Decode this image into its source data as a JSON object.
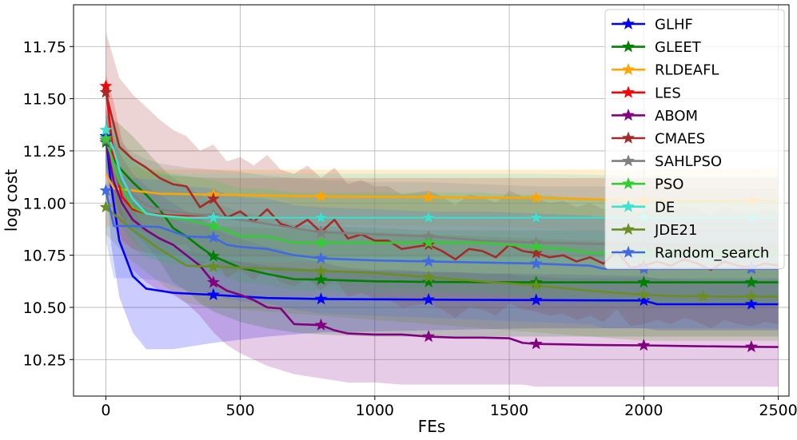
{
  "chart_data": {
    "type": "line",
    "xlabel": "FEs",
    "ylabel": "log cost",
    "xlim": [
      -120,
      2540
    ],
    "ylim": [
      10.075,
      11.95
    ],
    "xticks": [
      0,
      500,
      1000,
      1500,
      2000,
      2500
    ],
    "yticks": [
      10.25,
      10.5,
      10.75,
      11.0,
      11.25,
      11.5,
      11.75
    ],
    "xtick_labels": [
      "0",
      "500",
      "1000",
      "1500",
      "2000",
      "2500"
    ],
    "ytick_labels": [
      "10.25",
      "10.50",
      "10.75",
      "11.00",
      "11.25",
      "11.50",
      "11.75"
    ],
    "grid": true,
    "legend_position": "top-right",
    "series": [
      {
        "name": "GLHF",
        "color": "#0000ff",
        "x": [
          0,
          20,
          50,
          100,
          150,
          250,
          400,
          600,
          800,
          1200,
          1600,
          2000,
          2050,
          2400,
          2500
        ],
        "y": [
          11.32,
          11.08,
          10.82,
          10.65,
          10.59,
          10.57,
          10.56,
          10.545,
          10.54,
          10.537,
          10.535,
          10.533,
          10.515,
          10.515,
          10.515
        ],
        "markers_x": [
          0,
          400,
          800,
          1200,
          1600,
          2000,
          2400
        ],
        "band_upper": [
          11.46,
          11.35,
          11.18,
          10.98,
          10.86,
          10.79,
          10.74,
          10.7,
          10.68,
          10.67,
          10.66,
          10.65,
          10.64,
          10.64,
          10.64
        ],
        "band_lower": [
          11.18,
          10.8,
          10.55,
          10.38,
          10.3,
          10.3,
          10.33,
          10.36,
          10.38,
          10.39,
          10.4,
          10.4,
          10.39,
          10.39,
          10.39
        ]
      },
      {
        "name": "GLEET",
        "color": "#008000",
        "x": [
          0,
          50,
          100,
          150,
          200,
          250,
          300,
          350,
          400,
          500,
          600,
          700,
          800,
          1000,
          1200,
          1600,
          2000,
          2400,
          2500
        ],
        "y": [
          11.29,
          11.17,
          11.1,
          11.04,
          10.97,
          10.88,
          10.84,
          10.79,
          10.745,
          10.69,
          10.66,
          10.635,
          10.633,
          10.625,
          10.622,
          10.62,
          10.62,
          10.62,
          10.62
        ],
        "markers_x": [
          0,
          400,
          800,
          1200,
          1600,
          2000,
          2400
        ],
        "band_upper": [
          11.42,
          11.38,
          11.32,
          11.25,
          11.18,
          11.12,
          11.08,
          11.04,
          11.0,
          10.96,
          10.93,
          10.9,
          10.89,
          10.88,
          10.87,
          10.87,
          10.87,
          10.87,
          10.87
        ],
        "band_lower": [
          11.15,
          10.95,
          10.86,
          10.8,
          10.72,
          10.62,
          10.58,
          10.52,
          10.48,
          10.43,
          10.4,
          10.38,
          10.37,
          10.36,
          10.36,
          10.36,
          10.36,
          10.36,
          10.36
        ]
      },
      {
        "name": "RLDEAFL",
        "color": "#ffa500",
        "x": [
          0,
          30,
          100,
          200,
          400,
          800,
          1200,
          1600,
          1900,
          2000,
          2500
        ],
        "y": [
          11.14,
          11.07,
          11.06,
          11.045,
          11.04,
          11.032,
          11.028,
          11.025,
          11.015,
          11.01,
          11.01
        ],
        "markers_x": [
          400,
          800,
          1200,
          1600,
          2000,
          2400
        ],
        "band_upper": [
          11.2,
          11.18,
          11.17,
          11.16,
          11.16,
          11.16,
          11.16,
          11.16,
          11.16,
          11.16,
          11.17
        ],
        "band_lower": [
          10.88,
          10.9,
          10.9,
          10.91,
          10.92,
          10.9,
          10.89,
          10.88,
          10.86,
          10.86,
          10.86
        ]
      },
      {
        "name": "LES",
        "color": "#ff0000",
        "x": [
          0,
          30,
          60,
          100,
          150,
          250,
          400,
          800,
          1200,
          1600,
          2000,
          2500
        ],
        "y": [
          11.56,
          11.2,
          11.03,
          10.97,
          10.95,
          10.94,
          10.93,
          10.93,
          10.93,
          10.93,
          10.93,
          10.93
        ],
        "markers_x": [
          0,
          400,
          800,
          1200,
          1600,
          2000,
          2400
        ],
        "band_upper": [
          11.62,
          11.48,
          11.3,
          11.2,
          11.15,
          11.13,
          11.12,
          11.12,
          11.12,
          11.12,
          11.12,
          11.12
        ],
        "band_lower": [
          11.5,
          10.95,
          10.82,
          10.78,
          10.76,
          10.75,
          10.74,
          10.74,
          10.74,
          10.74,
          10.74,
          10.74
        ]
      },
      {
        "name": "ABOM",
        "color": "#800080",
        "x": [
          0,
          30,
          60,
          100,
          150,
          200,
          250,
          300,
          350,
          400,
          450,
          500,
          550,
          600,
          650,
          700,
          800,
          850,
          900,
          1000,
          1100,
          1200,
          1300,
          1400,
          1500,
          1550,
          1600,
          1700,
          1800,
          2000,
          2200,
          2400,
          2500
        ],
        "y": [
          11.3,
          11.1,
          11.0,
          10.92,
          10.87,
          10.83,
          10.8,
          10.75,
          10.7,
          10.62,
          10.58,
          10.56,
          10.535,
          10.5,
          10.495,
          10.42,
          10.415,
          10.39,
          10.375,
          10.37,
          10.37,
          10.36,
          10.355,
          10.355,
          10.352,
          10.33,
          10.325,
          10.323,
          10.32,
          10.318,
          10.314,
          10.311,
          10.31
        ],
        "markers_x": [
          0,
          400,
          800,
          1200,
          1600,
          2000,
          2400
        ],
        "band_upper": [
          11.4,
          11.3,
          11.22,
          11.14,
          11.08,
          11.04,
          11.0,
          10.96,
          10.93,
          10.88,
          10.85,
          10.83,
          10.81,
          10.79,
          10.78,
          10.74,
          10.72,
          10.7,
          10.69,
          10.68,
          10.68,
          10.67,
          10.67,
          10.66,
          10.66,
          10.65,
          10.65,
          10.64,
          10.64,
          10.64,
          10.63,
          10.63,
          10.63
        ],
        "band_lower": [
          11.2,
          10.9,
          10.78,
          10.68,
          10.62,
          10.58,
          10.56,
          10.52,
          10.46,
          10.38,
          10.32,
          10.28,
          10.25,
          10.22,
          10.2,
          10.18,
          10.16,
          10.15,
          10.14,
          10.14,
          10.13,
          10.13,
          10.13,
          10.13,
          10.13,
          10.13,
          10.12,
          10.12,
          10.12,
          10.12,
          10.12,
          10.12,
          10.12
        ]
      },
      {
        "name": "CMAES",
        "color": "#a52a2a",
        "x": [
          0,
          50,
          100,
          150,
          200,
          250,
          300,
          350,
          400,
          450,
          500,
          550,
          600,
          650,
          700,
          750,
          800,
          850,
          900,
          950,
          1000,
          1050,
          1100,
          1150,
          1200,
          1250,
          1300,
          1350,
          1400,
          1450,
          1500,
          1550,
          1600,
          1650,
          1700,
          1750,
          1800,
          1850,
          1900,
          1950,
          2000,
          2050,
          2100,
          2150,
          2200,
          2250,
          2300,
          2350,
          2400,
          2450,
          2500
        ],
        "y": [
          11.53,
          11.27,
          11.21,
          11.17,
          11.12,
          11.09,
          11.08,
          10.98,
          11.02,
          10.93,
          10.96,
          10.91,
          10.97,
          10.9,
          10.88,
          10.92,
          10.86,
          10.92,
          10.83,
          10.85,
          10.82,
          10.82,
          10.78,
          10.79,
          10.8,
          10.77,
          10.73,
          10.78,
          10.77,
          10.74,
          10.8,
          10.77,
          10.76,
          10.74,
          10.75,
          10.72,
          10.74,
          10.71,
          10.77,
          10.69,
          10.7,
          10.72,
          10.7,
          10.73,
          10.71,
          10.68,
          10.72,
          10.7,
          10.69,
          10.71,
          10.7
        ],
        "markers_x": [
          0,
          400,
          800,
          1200,
          1600,
          2000,
          2400
        ],
        "band_upper": [
          11.82,
          11.6,
          11.52,
          11.46,
          11.4,
          11.35,
          11.32,
          11.25,
          11.28,
          11.2,
          11.22,
          11.18,
          11.23,
          11.16,
          11.14,
          11.18,
          11.12,
          11.17,
          11.09,
          11.11,
          11.08,
          11.08,
          11.04,
          11.05,
          11.06,
          11.03,
          10.99,
          11.04,
          11.03,
          11.0,
          11.06,
          11.03,
          11.02,
          11.0,
          11.01,
          10.98,
          11.0,
          10.97,
          11.03,
          10.95,
          10.96,
          10.98,
          10.96,
          10.99,
          10.97,
          10.94,
          10.98,
          10.96,
          10.95,
          10.97,
          10.96
        ],
        "band_lower": [
          11.25,
          10.95,
          10.88,
          10.86,
          10.82,
          10.8,
          10.8,
          10.7,
          10.74,
          10.64,
          10.68,
          10.63,
          10.69,
          10.62,
          10.6,
          10.64,
          10.58,
          10.64,
          10.55,
          10.57,
          10.54,
          10.54,
          10.5,
          10.51,
          10.52,
          10.49,
          10.45,
          10.5,
          10.49,
          10.46,
          10.52,
          10.49,
          10.48,
          10.46,
          10.47,
          10.44,
          10.46,
          10.43,
          10.49,
          10.41,
          10.42,
          10.44,
          10.42,
          10.45,
          10.43,
          10.4,
          10.44,
          10.42,
          10.41,
          10.43,
          10.42
        ]
      },
      {
        "name": "SAHLPSO",
        "color": "#808080",
        "x": [
          0,
          50,
          100,
          150,
          200,
          300,
          400,
          500,
          600,
          700,
          800,
          1000,
          1200,
          1400,
          1600,
          2000,
          2400,
          2500
        ],
        "y": [
          11.3,
          11.12,
          11.04,
          10.99,
          10.97,
          10.95,
          10.94,
          10.92,
          10.9,
          10.88,
          10.86,
          10.85,
          10.84,
          10.82,
          10.81,
          10.8,
          10.79,
          10.79
        ],
        "markers_x": [
          0,
          400,
          800,
          1200,
          1600,
          2000,
          2400
        ],
        "band_upper": [
          11.45,
          11.3,
          11.24,
          11.21,
          11.19,
          11.17,
          11.16,
          11.15,
          11.13,
          11.12,
          11.11,
          11.1,
          11.1,
          11.09,
          11.08,
          11.08,
          11.07,
          11.07
        ],
        "band_lower": [
          11.15,
          10.9,
          10.82,
          10.76,
          10.74,
          10.72,
          10.71,
          10.68,
          10.66,
          10.64,
          10.61,
          10.6,
          10.58,
          10.55,
          10.54,
          10.52,
          10.51,
          10.51
        ]
      },
      {
        "name": "PSO",
        "color": "#32cd32",
        "x": [
          0,
          50,
          100,
          150,
          200,
          300,
          400,
          450,
          500,
          600,
          700,
          800,
          1000,
          1200,
          1400,
          1500,
          1600,
          1700,
          1800,
          2000,
          2400,
          2500
        ],
        "y": [
          11.31,
          11.1,
          10.98,
          10.95,
          10.94,
          10.92,
          10.89,
          10.87,
          10.84,
          10.84,
          10.81,
          10.81,
          10.81,
          10.81,
          10.81,
          10.8,
          10.79,
          10.78,
          10.76,
          10.76,
          10.76,
          10.76
        ],
        "markers_x": [
          0,
          400,
          800,
          1200,
          1600,
          2000,
          2400
        ],
        "band_upper": [
          11.4,
          11.28,
          11.2,
          11.17,
          11.15,
          11.13,
          11.11,
          11.09,
          11.07,
          11.07,
          11.05,
          11.05,
          11.05,
          11.05,
          11.05,
          11.04,
          11.04,
          11.03,
          11.02,
          11.02,
          11.02,
          11.02
        ],
        "band_lower": [
          11.2,
          10.9,
          10.78,
          10.74,
          10.72,
          10.7,
          10.67,
          10.65,
          10.62,
          10.61,
          10.58,
          10.58,
          10.57,
          10.57,
          10.57,
          10.56,
          10.55,
          10.54,
          10.52,
          10.52,
          10.52,
          10.52
        ]
      },
      {
        "name": "DE",
        "color": "#40e0d0",
        "x": [
          0,
          30,
          60,
          100,
          150,
          200,
          300,
          400,
          800,
          1200,
          1600,
          2000,
          2400,
          2500
        ],
        "y": [
          11.35,
          11.25,
          11.12,
          11.02,
          10.95,
          10.94,
          10.93,
          10.93,
          10.93,
          10.93,
          10.93,
          10.93,
          10.93,
          10.93
        ],
        "markers_x": [
          0,
          400,
          800,
          1200,
          1600,
          2000,
          2400
        ],
        "band_upper": [
          11.42,
          11.38,
          11.28,
          11.2,
          11.15,
          11.14,
          11.14,
          11.14,
          11.14,
          11.14,
          11.14,
          11.13,
          11.13,
          11.13
        ],
        "band_lower": [
          11.28,
          11.1,
          10.96,
          10.84,
          10.75,
          10.73,
          10.72,
          10.72,
          10.72,
          10.72,
          10.72,
          10.72,
          10.72,
          10.72
        ]
      },
      {
        "name": "JDE21",
        "color": "#6b8e23",
        "x": [
          0,
          100,
          200,
          300,
          400,
          600,
          800,
          1000,
          1200,
          1400,
          1600,
          1800,
          2000,
          2100,
          2200,
          2300,
          2500
        ],
        "y": [
          10.98,
          10.87,
          10.78,
          10.7,
          10.695,
          10.685,
          10.675,
          10.665,
          10.645,
          10.625,
          10.605,
          10.58,
          10.56,
          10.555,
          10.553,
          10.552,
          10.552
        ],
        "markers_x": [
          0,
          400,
          800,
          1200,
          1600,
          2000,
          2220,
          2400
        ],
        "band_upper": [
          11.1,
          11.0,
          10.94,
          10.9,
          10.89,
          10.88,
          10.87,
          10.86,
          10.85,
          10.84,
          10.83,
          10.82,
          10.81,
          10.81,
          10.81,
          10.81,
          10.81
        ],
        "band_lower": [
          10.85,
          10.72,
          10.62,
          10.52,
          10.5,
          10.48,
          10.46,
          10.44,
          10.42,
          10.4,
          10.38,
          10.36,
          10.34,
          10.34,
          10.34,
          10.34,
          10.34
        ]
      },
      {
        "name": "Random_search",
        "color": "#4169e1",
        "x": [
          0,
          30,
          100,
          200,
          300,
          400,
          450,
          500,
          600,
          700,
          800,
          1000,
          1200,
          1400,
          1600,
          1800,
          1850,
          2000,
          2400,
          2500
        ],
        "y": [
          11.06,
          10.89,
          10.89,
          10.885,
          10.84,
          10.835,
          10.8,
          10.79,
          10.78,
          10.75,
          10.735,
          10.725,
          10.72,
          10.715,
          10.71,
          10.7,
          10.685,
          10.685,
          10.685,
          10.685
        ],
        "markers_x": [
          0,
          400,
          800,
          1200,
          1600,
          2000,
          2400
        ],
        "band_upper": [
          11.3,
          11.14,
          11.12,
          11.11,
          11.08,
          11.07,
          11.04,
          11.03,
          11.02,
          10.99,
          10.98,
          10.97,
          10.96,
          10.96,
          10.95,
          10.94,
          10.93,
          10.93,
          10.93,
          10.93
        ],
        "band_lower": [
          10.82,
          10.64,
          10.64,
          10.63,
          10.58,
          10.57,
          10.54,
          10.53,
          10.52,
          10.49,
          10.47,
          10.46,
          10.45,
          10.44,
          10.43,
          10.42,
          10.4,
          10.4,
          10.4,
          10.4
        ]
      }
    ]
  }
}
